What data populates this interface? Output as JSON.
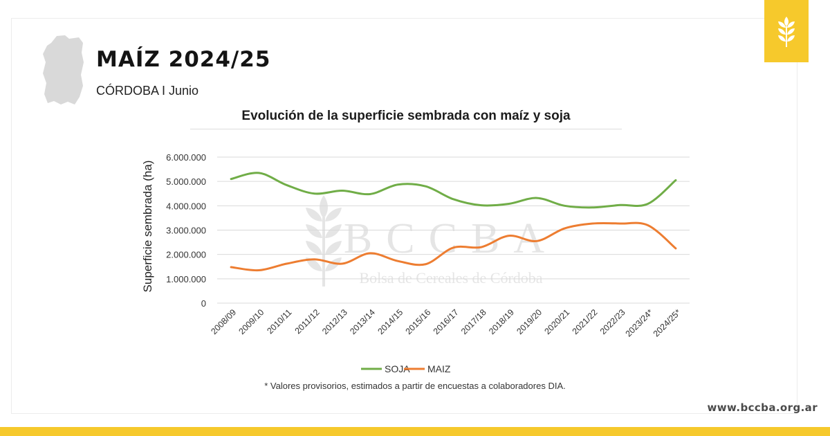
{
  "header": {
    "title": "MAÍZ 2024/25",
    "subtitle": "CÓRDOBA I Junio"
  },
  "watermark": {
    "name": "BCCBA",
    "subtitle": "Bolsa de Cereales de Córdoba"
  },
  "footnote": "* Valores provisorios, estimados a partir de encuestas a colaboradores DIA.",
  "site_url": "www.bccba.org.ar",
  "colors": {
    "brand_yellow": "#f6c92c",
    "soja": "#70ad47",
    "maiz": "#ed7d31",
    "map_gray": "#d9d9d9"
  },
  "icons": {
    "logo": "wheat-icon",
    "map": "cordoba-map-icon"
  },
  "chart_data": {
    "type": "line",
    "title": "Evolución de la superficie sembrada con maíz y soja",
    "xlabel": "",
    "ylabel": "Superficie sembrada (ha)",
    "ylim": [
      0,
      6000000
    ],
    "yticks": [
      0,
      1000000,
      2000000,
      3000000,
      4000000,
      5000000,
      6000000
    ],
    "ytick_labels": [
      "0",
      "1.000.000",
      "2.000.000",
      "3.000.000",
      "4.000.000",
      "5.000.000",
      "6.000.000"
    ],
    "grid": true,
    "legend": "bottom",
    "categories": [
      "2008/09",
      "2009/10",
      "2010/11",
      "2011/12",
      "2012/13",
      "2013/14",
      "2014/15",
      "2015/16",
      "2016/17",
      "2017/18",
      "2018/19",
      "2019/20",
      "2020/21",
      "2021/22",
      "2022/23",
      "2023/24*",
      "2024/25*"
    ],
    "series": [
      {
        "name": "SOJA",
        "color": "#70ad47",
        "values": [
          5100000,
          5350000,
          4850000,
          4500000,
          4620000,
          4480000,
          4870000,
          4800000,
          4270000,
          4020000,
          4080000,
          4320000,
          4000000,
          3930000,
          4030000,
          4080000,
          5050000
        ]
      },
      {
        "name": "MAIZ",
        "color": "#ed7d31",
        "values": [
          1480000,
          1350000,
          1620000,
          1800000,
          1620000,
          2050000,
          1730000,
          1600000,
          2280000,
          2300000,
          2770000,
          2550000,
          3070000,
          3270000,
          3270000,
          3200000,
          2250000
        ]
      }
    ]
  }
}
